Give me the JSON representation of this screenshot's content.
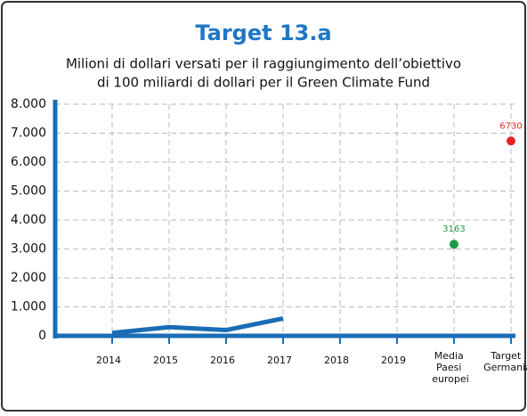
{
  "chart_data": {
    "type": "line",
    "title": "Target 13.a",
    "subtitle": [
      "Milioni di dollari versati per il raggiungimento dell’obiettivo",
      "di 100 miliardi di dollari per il Green Climate Fund"
    ],
    "categories": [
      "2014",
      "2015",
      "2016",
      "2017",
      "2018",
      "2019",
      "Media Paesi europei",
      "Target Germania"
    ],
    "series": [
      {
        "style": "line",
        "color": "#1a6db5",
        "values": [
          100,
          300,
          200,
          600,
          null,
          null,
          null,
          null
        ]
      },
      {
        "style": "points",
        "color": "#1a9a4a",
        "values": [
          null,
          null,
          null,
          null,
          null,
          null,
          3163,
          null
        ]
      },
      {
        "style": "points",
        "color": "#e8202a",
        "values": [
          null,
          null,
          null,
          null,
          null,
          null,
          null,
          6730
        ]
      }
    ],
    "ylim": [
      0,
      8000
    ],
    "yticks": [
      0,
      {
        "value": 1000,
        "label": "1.000"
      },
      {
        "value": 2000,
        "label": "2.000"
      },
      {
        "value": 3000,
        "label": "3.000"
      },
      {
        "value": 4000,
        "label": "4.000"
      },
      {
        "value": 5000,
        "label": "5.000"
      },
      {
        "value": 6000,
        "label": "6.000"
      },
      {
        "value": 7000,
        "label": "7.000"
      },
      {
        "value": 8000,
        "label": "8.000"
      }
    ],
    "grid": true
  }
}
